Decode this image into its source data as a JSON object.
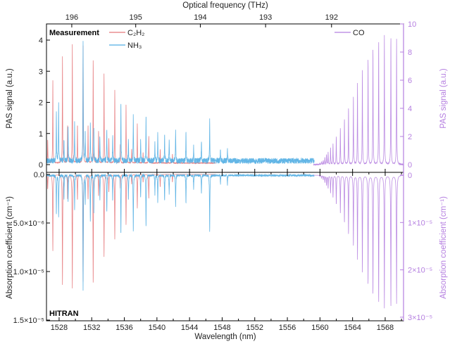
{
  "chart_data": {
    "type": "line",
    "top_axis_label": "Optical frequency (THz)",
    "top_ticks": [
      "196",
      "195",
      "194",
      "193",
      "192"
    ],
    "top_ticks_values": [
      196,
      195,
      194,
      193,
      192
    ],
    "xlabel": "Wavelength (nm)",
    "xlim": [
      1526.45,
      1570.25
    ],
    "x_ticks": [
      1528,
      1532,
      1536,
      1540,
      1544,
      1548,
      1552,
      1556,
      1560,
      1564,
      1568
    ],
    "panels": {
      "measurement": {
        "title": "Measurement",
        "ylabel_left": "PAS signal (a.u.)",
        "ylabel_right": "PAS signal (a.u.)",
        "ylim_left": [
          -0.25,
          4.5
        ],
        "ylim_right": [
          0,
          10
        ],
        "yticks_left": [
          "0",
          "1",
          "2",
          "3",
          "4"
        ],
        "yticks_right": [
          "0",
          "2",
          "4",
          "6",
          "8",
          "10"
        ]
      },
      "hitran": {
        "title": "HITRAN",
        "ylabel_left": "Absorption coefficient (cm⁻¹)",
        "ylabel_right": "Absorption coefficient (cm⁻¹)",
        "ylim_left": [
          0,
          1.5e-05
        ],
        "ylim_right": [
          0,
          3e-05
        ],
        "yticks_left": [
          "0.0",
          "5.0×10⁻⁶",
          "1.0×10⁻⁵",
          "1.5×10⁻⁵"
        ],
        "yticks_left_values": [
          0,
          5e-06,
          1e-05,
          1.5e-05
        ],
        "yticks_right": [
          "0",
          "1×10⁻⁵",
          "2×10⁻⁵",
          "3×10⁻⁵"
        ],
        "yticks_right_values": [
          0,
          1e-05,
          2e-05,
          3e-05
        ],
        "inverted": true
      }
    },
    "legend": [
      {
        "name": "C₂H₂",
        "color": "#e5777a",
        "axis": "left",
        "placement": "top-left"
      },
      {
        "name": "NH₃",
        "color": "#52aee3",
        "axis": "left",
        "placement": "top-left"
      },
      {
        "name": "CO",
        "color": "#b57fe0",
        "axis": "right",
        "placement": "top-right"
      }
    ],
    "series": [
      {
        "name": "C₂H₂",
        "color": "#e5777a",
        "axis": "left",
        "lines_nm": [
          1526.6,
          1527.23,
          1528.41,
          1529.62,
          1530.94,
          1532.18,
          1533.51,
          1534.83,
          1536.21,
          1537.59,
          1539.0,
          1540.4,
          1541.9,
          1529.04,
          1530.25,
          1531.55,
          1532.84,
          1534.1,
          1535.5,
          1536.9,
          1538.3
        ],
        "measured": [
          0.75,
          2.67,
          3.44,
          3.8,
          3.76,
          3.38,
          2.88,
          2.35,
          1.88,
          1.28,
          0.88,
          0.45,
          0.3,
          1.23,
          1.25,
          1.2,
          1.05,
          0.8,
          0.6,
          0.45,
          0.35
        ],
        "hitran": [
          1.5e-06,
          7.9e-06,
          1.14e-05,
          1.17e-05,
          1.1e-05,
          1.13e-05,
          8.5e-06,
          6.7e-06,
          5.2e-06,
          3.5e-06,
          2.5e-06,
          1.3e-06,
          8e-07,
          2.5e-06,
          2.6e-06,
          2.5e-06,
          2.2e-06,
          1.8e-06,
          1.4e-06,
          1e-06,
          8e-07
        ]
      },
      {
        "name": "NH₃",
        "color": "#52aee3",
        "axis": "left",
        "lines_nm": [
          1527.66,
          1527.94,
          1528.6,
          1529.1,
          1529.9,
          1530.94,
          1531.2,
          1531.83,
          1532.26,
          1533.0,
          1533.85,
          1534.57,
          1535.58,
          1536.5,
          1537.1,
          1538.0,
          1538.66,
          1539.75,
          1540.1,
          1540.94,
          1541.5,
          1542.29,
          1543.56,
          1544.5,
          1545.46,
          1546.47,
          1547.79,
          1548.65
        ],
        "measured": [
          1.55,
          1.78,
          0.7,
          1.15,
          1.23,
          3.76,
          0.9,
          1.27,
          1.13,
          0.8,
          1.05,
          0.8,
          1.95,
          0.75,
          1.45,
          0.7,
          1.45,
          0.6,
          0.88,
          0.86,
          0.65,
          1.03,
          0.95,
          0.5,
          0.65,
          1.3,
          0.35,
          0.38
        ],
        "hitran": [
          4.1e-06,
          4.5e-06,
          2.4e-06,
          3e-06,
          3.6e-06,
          1.18e-05,
          3e-06,
          5e-06,
          3.8e-06,
          2.6e-06,
          4e-06,
          2.6e-06,
          6.3e-06,
          2.5e-06,
          5.9e-06,
          2.3e-06,
          5.6e-06,
          2e-06,
          3e-06,
          2.8e-06,
          2e-06,
          3.2e-06,
          3e-06,
          1.5e-06,
          2e-06,
          5.9e-06,
          1e-06,
          1.1e-06
        ]
      },
      {
        "name": "CO",
        "color": "#b57fe0",
        "axis": "right",
        "lines_nm": [
          1560.0,
          1560.2,
          1560.4,
          1560.6,
          1560.8,
          1561.0,
          1561.3,
          1561.6,
          1562.0,
          1562.5,
          1563.0,
          1563.5,
          1564.1,
          1564.6,
          1565.2,
          1565.9,
          1566.5,
          1567.2,
          1567.9,
          1568.7,
          1569.4
        ],
        "measured": [
          0.1,
          0.2,
          0.3,
          0.5,
          0.7,
          0.9,
          1.2,
          1.5,
          2.0,
          2.6,
          3.3,
          4.1,
          4.9,
          5.8,
          6.7,
          7.6,
          8.3,
          8.9,
          9.2,
          9.2,
          8.9
        ],
        "hitran": [
          3e-07,
          6e-07,
          9e-07,
          1.5e-06,
          2.1e-06,
          2.7e-06,
          3.7e-06,
          4.6e-06,
          6.1e-06,
          7.9e-06,
          1e-05,
          1.25e-05,
          1.5e-05,
          1.77e-05,
          2.04e-05,
          2.32e-05,
          2.53e-05,
          2.71e-05,
          2.8e-05,
          2.8e-05,
          2.71e-05
        ]
      }
    ]
  }
}
